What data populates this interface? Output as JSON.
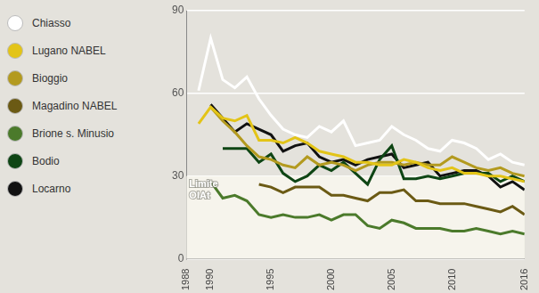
{
  "chart_data": {
    "type": "line",
    "x": [
      1989,
      1990,
      1991,
      1992,
      1993,
      1994,
      1995,
      1996,
      1997,
      1998,
      1999,
      2000,
      2001,
      2002,
      2003,
      2004,
      2005,
      2006,
      2007,
      2008,
      2009,
      2010,
      2011,
      2012,
      2013,
      2014,
      2015,
      2016
    ],
    "series": [
      {
        "name": "Chiasso",
        "color": "#ffffff",
        "values": [
          61,
          80,
          65,
          62,
          66,
          58,
          52,
          47,
          45,
          44,
          48,
          46,
          50,
          41,
          42,
          43,
          48,
          45,
          43,
          40,
          39,
          43,
          42,
          40,
          36,
          38,
          35,
          34
        ]
      },
      {
        "name": "Lugano NABEL",
        "color": "#e3c417",
        "values": [
          49,
          55,
          51,
          50,
          52,
          43,
          43,
          42,
          44,
          42,
          39,
          38,
          37,
          35,
          35,
          34,
          34,
          36,
          35,
          33,
          32,
          33,
          31,
          31,
          30,
          30,
          29,
          28
        ]
      },
      {
        "name": "Bioggio",
        "color": "#b39a1f",
        "values": [
          null,
          55,
          50,
          46,
          41,
          37,
          36,
          34,
          33,
          37,
          34,
          35,
          34,
          32,
          34,
          35,
          35,
          34,
          35,
          34,
          34,
          37,
          35,
          33,
          32,
          33,
          31,
          30
        ]
      },
      {
        "name": "Magadino NABEL",
        "color": "#6b5a14",
        "values": [
          null,
          null,
          null,
          null,
          null,
          27,
          26,
          24,
          26,
          26,
          26,
          23,
          23,
          22,
          21,
          24,
          24,
          25,
          21,
          21,
          20,
          20,
          20,
          19,
          18,
          17,
          19,
          16
        ]
      },
      {
        "name": "Brione s. Minusio",
        "color": "#4b7a2b",
        "values": [
          null,
          28,
          22,
          23,
          21,
          16,
          15,
          16,
          15,
          15,
          16,
          14,
          16,
          16,
          12,
          11,
          14,
          13,
          11,
          11,
          11,
          10,
          10,
          11,
          10,
          9,
          10,
          9
        ]
      },
      {
        "name": "Bodio",
        "color": "#0e4514",
        "values": [
          null,
          null,
          40,
          40,
          40,
          35,
          38,
          31,
          28,
          30,
          34,
          32,
          35,
          31,
          27,
          36,
          41,
          29,
          29,
          30,
          29,
          30,
          31,
          31,
          31,
          28,
          30,
          28
        ]
      },
      {
        "name": "Locarno",
        "color": "#111111",
        "values": [
          null,
          56,
          51,
          46,
          49,
          47,
          45,
          39,
          41,
          42,
          37,
          35,
          36,
          34,
          36,
          37,
          38,
          33,
          34,
          35,
          30,
          31,
          32,
          32,
          30,
          26,
          28,
          25
        ]
      }
    ],
    "xlim": [
      1988,
      2016
    ],
    "xticks": [
      1988,
      1990,
      1995,
      2000,
      2005,
      2010,
      2016
    ],
    "ylim": [
      0,
      90
    ],
    "yticks": [
      0,
      30,
      60,
      90
    ],
    "grid": true,
    "legend": "left",
    "annotations": [
      {
        "text": "Limite OIAt",
        "y": 30
      }
    ]
  }
}
